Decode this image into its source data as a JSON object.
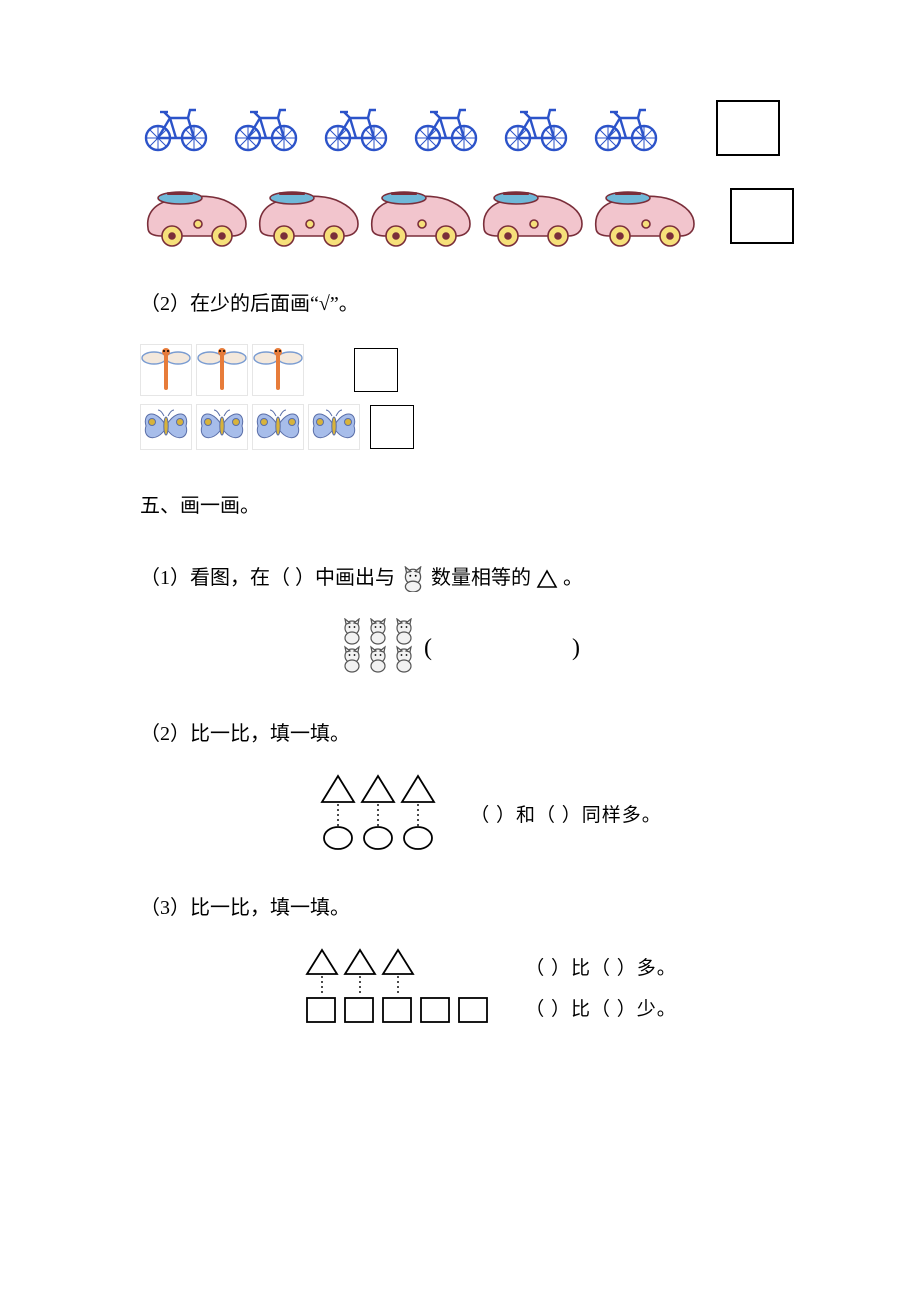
{
  "colors": {
    "bike": "#2c53c9",
    "car_body": "#f2c5cd",
    "car_outline": "#7a2e3a",
    "car_window": "#6fb8d8",
    "car_wheel": "#f6e07a",
    "dragonfly_body": "#e77c3a",
    "dragonfly_wing_fill": "#f3e8dc",
    "dragonfly_wing_stroke": "#7a9cd1",
    "butterfly_wing": "#a7bdea",
    "butterfly_body": "#d8b33a",
    "cat_fill": "#f2f2f2",
    "cat_stroke": "#555555",
    "answer_box_border": "#000000",
    "text": "#000000"
  },
  "q1_top": {
    "count_bikes": 6,
    "count_cars": 5
  },
  "q2": {
    "prompt": "（2）在少的后面画“√”。",
    "count_dragonflies": 3,
    "count_butterflies": 4
  },
  "section5": {
    "title": "五、画一画。"
  },
  "q5_1": {
    "prompt_pre": "（1）看图，在（  ）中画出与",
    "prompt_post": "数量相等的",
    "prompt_end": "。",
    "cat_columns": 3,
    "cat_rows": 2,
    "bracket_open": "(",
    "bracket_close": ")"
  },
  "q5_2": {
    "prompt": "（2）比一比，填一填。",
    "triangles": 3,
    "circles": 3,
    "caption": "（   ）和（   ）同样多。"
  },
  "q5_3": {
    "prompt": "（3）比一比，填一填。",
    "triangles": 3,
    "squares": 5,
    "caption_line1": "（   ）比（   ）多。",
    "caption_line2": "（   ）比（   ）少。"
  }
}
